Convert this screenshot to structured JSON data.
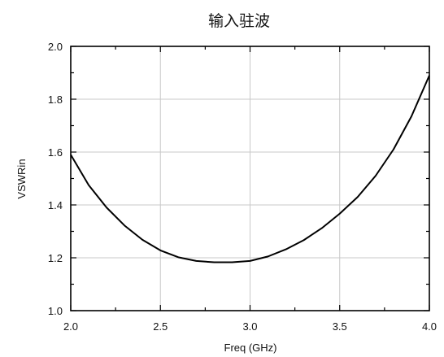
{
  "chart_data": {
    "type": "line",
    "title": "输入驻波",
    "xlabel": "Freq (GHz)",
    "ylabel": "VSWRin",
    "xlim": [
      2.0,
      4.0
    ],
    "ylim": [
      1.0,
      2.0
    ],
    "x_ticks": [
      "2.0",
      "2.5",
      "3.0",
      "3.5",
      "4.0"
    ],
    "y_ticks": [
      "1.0",
      "1.2",
      "1.4",
      "1.6",
      "1.8",
      "2.0"
    ],
    "grid": true,
    "series": [
      {
        "color": "#000000",
        "x": [
          2.0,
          2.1,
          2.2,
          2.3,
          2.4,
          2.5,
          2.6,
          2.7,
          2.8,
          2.9,
          3.0,
          3.1,
          3.2,
          3.3,
          3.4,
          3.5,
          3.6,
          3.7,
          3.8,
          3.9,
          4.0
        ],
        "y": [
          1.59,
          1.475,
          1.39,
          1.322,
          1.268,
          1.228,
          1.202,
          1.188,
          1.183,
          1.183,
          1.188,
          1.205,
          1.232,
          1.267,
          1.312,
          1.367,
          1.43,
          1.51,
          1.61,
          1.735,
          1.89
        ]
      }
    ]
  }
}
